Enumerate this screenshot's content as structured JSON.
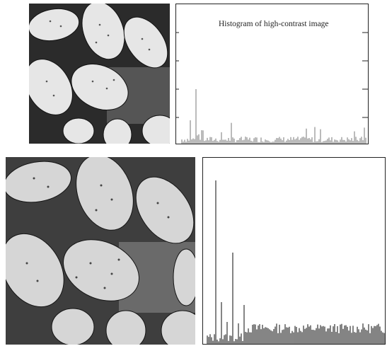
{
  "top_histogram": {
    "title": "Histogram of high-contrast image"
  },
  "bottom_histogram": {
    "title": ""
  },
  "colors": {
    "image_background": "#3a3a3a",
    "pollen": "#dcdcdc",
    "histogram_line": "#333333"
  },
  "icons": [
    "pollen-image",
    "histogram"
  ]
}
